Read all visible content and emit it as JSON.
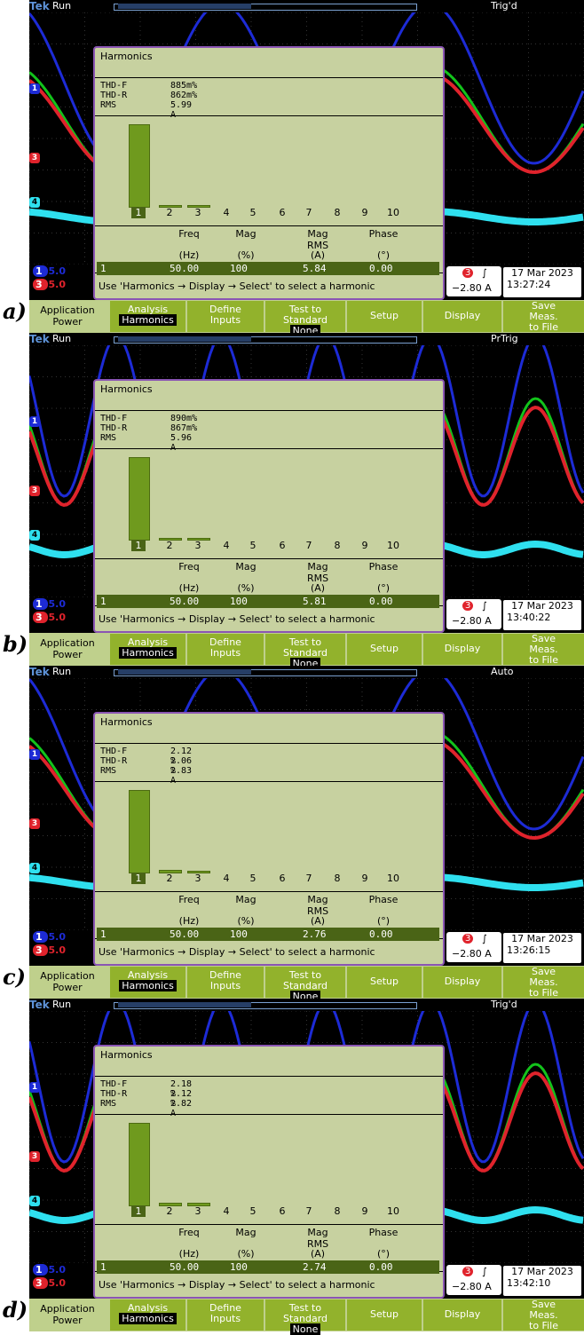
{
  "panels": [
    {
      "letter": "a)",
      "status": "Run",
      "trigger": "Trig'd",
      "thd_f": "885m%",
      "thd_r": "862m%",
      "rms": "5.99 A",
      "mag_rms": "5.84",
      "time": "13:27:24",
      "bar2": 0,
      "bar3": 0
    },
    {
      "letter": "b)",
      "status": "Run",
      "trigger": "PrTrig",
      "thd_f": "890m%",
      "thd_r": "867m%",
      "rms": "5.96 A",
      "mag_rms": "5.81",
      "time": "13:40:22",
      "bar2": 0,
      "bar3": 0
    },
    {
      "letter": "c)",
      "status": "Run",
      "trigger": "Auto",
      "thd_f": "2.12 %",
      "thd_r": "2.06 %",
      "rms": "2.83 A",
      "mag_rms": "2.76",
      "time": "13:26:15",
      "bar2": 0.02,
      "bar3": 0
    },
    {
      "letter": "d)",
      "status": "Run",
      "trigger": "Trig'd",
      "thd_f": "2.18 %",
      "thd_r": "2.12 %",
      "rms": "2.82 A",
      "mag_rms": "2.74",
      "time": "13:42:10",
      "bar2": 0.02,
      "bar3": 0.02
    }
  ],
  "common": {
    "brand": "Tek",
    "title": "Harmonics",
    "thd_f_label": "THD-F",
    "thd_r_label": "THD-R",
    "rms_label": "RMS",
    "harmonic_numbers": [
      "1",
      "2",
      "3",
      "4",
      "5",
      "6",
      "7",
      "8",
      "9",
      "10"
    ],
    "col_freq": "Freq",
    "col_mag": "Mag",
    "col_magrms": "Mag\nRMS",
    "col_phase": "Phase",
    "unit_freq": "(Hz)",
    "unit_mag": "(%)",
    "unit_magrms": "(A)",
    "unit_phase": "(°)",
    "row_index": "1",
    "row_freq": "50.00",
    "row_mag": "100",
    "row_phase": "0.00",
    "help": "Use 'Harmonics → Display → Select' to select a harmonic",
    "ch1": "1",
    "ch3": "3",
    "ch4": "4",
    "scale1": "5.0",
    "scale3": "5.0",
    "trig_level": "−2.80 A",
    "date": "17 Mar 2023",
    "menu": {
      "app": "Application\nPower",
      "analysis": "Analysis",
      "analysis_sub": "Harmonics",
      "define": "Define\nInputs",
      "test": "Test to\nStandard",
      "test_sub": "None",
      "setup": "Setup",
      "display": "Display",
      "save": "Save\nMeas.\nto File"
    },
    "colors": {
      "ch1": "#1d2bd6",
      "ch2": "#13c31b",
      "ch3": "#e0232c",
      "ch4": "#2fe0ef",
      "harmonic_bar": "#6f9a1e",
      "menu": "#92b22c",
      "overlay": "#c7d1a0"
    }
  }
}
